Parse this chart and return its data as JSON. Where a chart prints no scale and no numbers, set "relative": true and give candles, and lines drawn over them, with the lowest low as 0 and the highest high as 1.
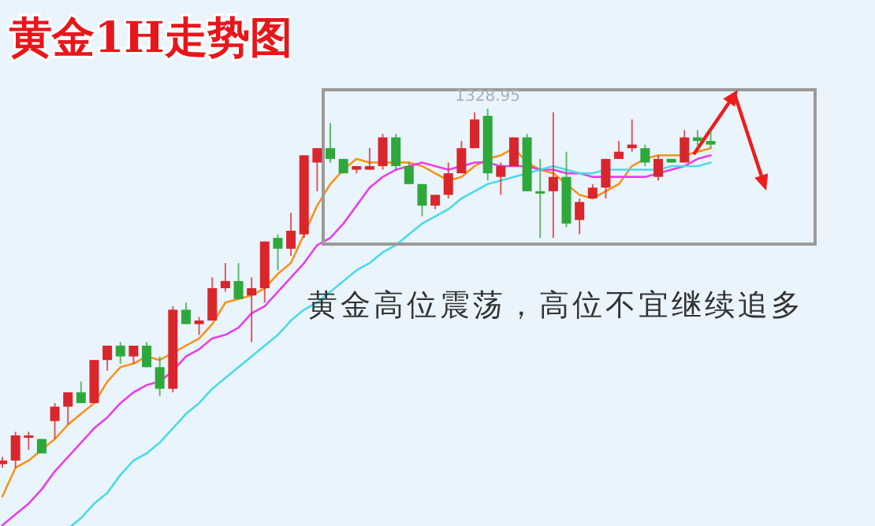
{
  "chart_data": {
    "type": "candlestick",
    "title": "黄金1H走势图",
    "relative": true,
    "categories": [
      null,
      null,
      null,
      null,
      null,
      null,
      null,
      null,
      null,
      null,
      null,
      null,
      null,
      null,
      null,
      null,
      null,
      null,
      null,
      null,
      null,
      null,
      null,
      null,
      null,
      null,
      null,
      null,
      null,
      null,
      null,
      null,
      null,
      null,
      null,
      null,
      null,
      null,
      null,
      null,
      null,
      null,
      null,
      null,
      null,
      null,
      null,
      null,
      null,
      null,
      null,
      null,
      null,
      null,
      null
    ],
    "ohlc": [
      [
        0.01,
        0.03,
        0,
        0.02
      ],
      [
        0.02,
        0.1,
        0.0,
        0.09
      ],
      [
        0.09,
        0.1,
        0.05,
        0.09
      ],
      [
        0.08,
        0.08,
        0.04,
        0.04
      ],
      [
        0.13,
        0.18,
        0.08,
        0.17
      ],
      [
        0.17,
        0.21,
        0.12,
        0.21
      ],
      [
        0.21,
        0.24,
        0.18,
        0.18
      ],
      [
        0.18,
        0.3,
        0.18,
        0.3
      ],
      [
        0.3,
        0.34,
        0.27,
        0.34
      ],
      [
        0.34,
        0.35,
        0.29,
        0.31
      ],
      [
        0.31,
        0.34,
        0.29,
        0.34
      ],
      [
        0.34,
        0.35,
        0.28,
        0.28
      ],
      [
        0.28,
        0.31,
        0.2,
        0.22
      ],
      [
        0.22,
        0.45,
        0.21,
        0.44
      ],
      [
        0.44,
        0.46,
        0.4,
        0.4
      ],
      [
        0.4,
        0.42,
        0.37,
        0.41
      ],
      [
        0.41,
        0.53,
        0.41,
        0.5
      ],
      [
        0.5,
        0.57,
        0.49,
        0.52
      ],
      [
        0.52,
        0.57,
        0.47,
        0.47
      ],
      [
        0.48,
        0.53,
        0.35,
        0.5
      ],
      [
        0.5,
        0.63,
        0.46,
        0.63
      ],
      [
        0.64,
        0.65,
        0.55,
        0.61
      ],
      [
        0.61,
        0.71,
        0.59,
        0.66
      ],
      [
        0.65,
        0.87,
        0.64,
        0.87
      ],
      [
        0.85,
        0.89,
        0.77,
        0.89
      ],
      [
        0.89,
        0.96,
        0.85,
        0.86
      ],
      [
        0.86,
        0.86,
        0.82,
        0.82
      ],
      [
        0.83,
        0.84,
        0.82,
        0.84
      ],
      [
        0.83,
        0.89,
        0.83,
        0.84
      ],
      [
        0.84,
        0.93,
        0.83,
        0.92
      ],
      [
        0.92,
        0.93,
        0.83,
        0.84
      ],
      [
        0.84,
        0.85,
        0.79,
        0.79
      ],
      [
        0.79,
        0.79,
        0.7,
        0.73
      ],
      [
        0.73,
        0.76,
        0.72,
        0.76
      ],
      [
        0.76,
        0.85,
        0.75,
        0.82
      ],
      [
        0.82,
        0.91,
        0.82,
        0.89
      ],
      [
        0.89,
        0.99,
        0.89,
        0.97
      ],
      [
        0.98,
        1,
        0.8,
        0.82
      ],
      [
        0.81,
        0.85,
        0.76,
        0.84
      ],
      [
        0.84,
        0.92,
        0.84,
        0.92
      ],
      [
        0.92,
        0.93,
        0.77,
        0.77
      ],
      [
        0.77,
        0.86,
        0.64,
        0.77
      ],
      [
        0.77,
        0.99,
        0.64,
        0.81
      ],
      [
        0.81,
        0.88,
        0.67,
        0.68
      ],
      [
        0.69,
        0.75,
        0.65,
        0.74
      ],
      [
        0.75,
        0.79,
        0.75,
        0.78
      ],
      [
        0.78,
        0.86,
        0.75,
        0.86
      ],
      [
        0.86,
        0.91,
        0.86,
        0.88
      ],
      [
        0.89,
        0.97,
        0.88,
        0.9
      ],
      [
        0.89,
        0.9,
        0.84,
        0.85
      ],
      [
        0.81,
        0.87,
        0.8,
        0.86
      ],
      [
        0.86,
        0.86,
        0.85,
        0.85
      ],
      [
        0.85,
        0.94,
        0.85,
        0.92
      ],
      [
        0.92,
        0.94,
        0.89,
        0.91
      ],
      [
        0.91,
        0.94,
        0.89,
        0.9
      ]
    ],
    "colors": [
      "#d9262c",
      "#d9262c",
      "#d9262c",
      "#2ea83a",
      "#d9262c",
      "#d9262c",
      "#2ea83a",
      "#d9262c",
      "#d9262c",
      "#2ea83a",
      "#d9262c",
      "#2ea83a",
      "#2ea83a",
      "#d9262c",
      "#2ea83a",
      "#d9262c",
      "#d9262c",
      "#d9262c",
      "#2ea83a",
      "#d9262c",
      "#d9262c",
      "#2ea83a",
      "#d9262c",
      "#d9262c",
      "#d9262c",
      "#2ea83a",
      "#2ea83a",
      "#d9262c",
      "#d9262c",
      "#d9262c",
      "#2ea83a",
      "#2ea83a",
      "#2ea83a",
      "#d9262c",
      "#d9262c",
      "#d9262c",
      "#d9262c",
      "#2ea83a",
      "#d9262c",
      "#d9262c",
      "#2ea83a",
      "#2ea83a",
      "#d9262c",
      "#2ea83a",
      "#d9262c",
      "#d9262c",
      "#d9262c",
      "#d9262c",
      "#d9262c",
      "#2ea83a",
      "#d9262c",
      "#2ea83a",
      "#d9262c",
      "#2ea83a",
      "#2ea83a"
    ],
    "series": [
      {
        "type": "line",
        "color": "#f7931e",
        "values": [
          -0.08,
          0.0,
          0.02,
          0.05,
          0.08,
          0.12,
          0.15,
          0.18,
          0.24,
          0.28,
          0.29,
          0.31,
          0.3,
          0.32,
          0.34,
          0.36,
          0.4,
          0.46,
          0.47,
          0.48,
          0.5,
          0.54,
          0.57,
          0.65,
          0.73,
          0.79,
          0.83,
          0.86,
          0.85,
          0.85,
          0.85,
          0.85,
          0.84,
          0.82,
          0.8,
          0.81,
          0.84,
          0.86,
          0.87,
          0.89,
          0.85,
          0.83,
          0.82,
          0.79,
          0.76,
          0.75,
          0.77,
          0.79,
          0.84,
          0.86,
          0.87,
          0.87,
          0.87,
          0.88,
          0.89
        ]
      },
      {
        "type": "line",
        "color": "#e83fe8",
        "values": [
          -0.16,
          -0.13,
          -0.1,
          -0.06,
          -0.01,
          0.03,
          0.07,
          0.11,
          0.14,
          0.18,
          0.21,
          0.23,
          0.24,
          0.27,
          0.31,
          0.33,
          0.36,
          0.37,
          0.39,
          0.43,
          0.45,
          0.49,
          0.53,
          0.57,
          0.62,
          0.64,
          0.68,
          0.73,
          0.78,
          0.81,
          0.83,
          0.84,
          0.85,
          0.84,
          0.83,
          0.84,
          0.85,
          0.85,
          0.84,
          0.84,
          0.84,
          0.83,
          0.83,
          0.82,
          0.82,
          0.81,
          0.81,
          0.81,
          0.81,
          0.81,
          0.82,
          0.83,
          0.84,
          0.86,
          0.87
        ]
      },
      {
        "type": "line",
        "color": "#4dd9e8",
        "values": [
          null,
          null,
          null,
          null,
          null,
          -0.17,
          -0.14,
          -0.1,
          -0.07,
          -0.02,
          0.02,
          0.04,
          0.07,
          0.11,
          0.15,
          0.18,
          0.22,
          0.25,
          0.28,
          0.31,
          0.34,
          0.37,
          0.41,
          0.44,
          0.46,
          0.49,
          0.52,
          0.55,
          0.57,
          0.6,
          0.62,
          0.65,
          0.68,
          0.7,
          0.72,
          0.75,
          0.77,
          0.79,
          0.8,
          0.81,
          0.82,
          0.83,
          0.84,
          0.83,
          0.82,
          0.82,
          0.83,
          0.83,
          0.83,
          0.83,
          0.83,
          0.84,
          0.84,
          0.84,
          0.85
        ]
      }
    ],
    "annotations": [
      {
        "text": "1328.95",
        "y": 1
      },
      "黄金高位震荡，高位不宜继续追多"
    ]
  }
}
